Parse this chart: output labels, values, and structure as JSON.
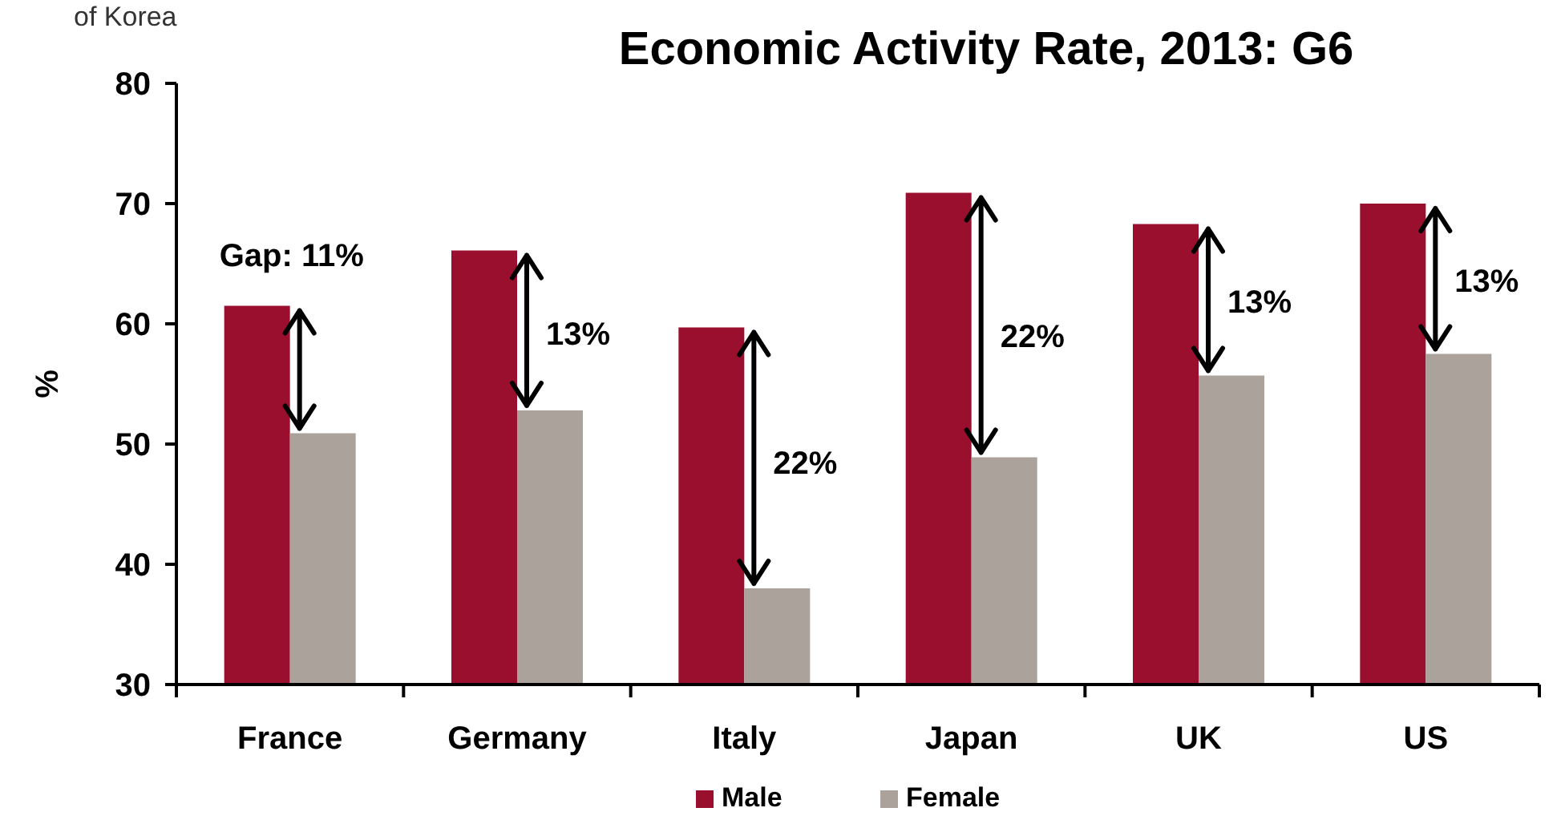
{
  "chart_data": {
    "type": "bar",
    "title": "Economic Activity Rate, 2013: G6",
    "ylabel": "%",
    "categories": [
      "France",
      "Germany",
      "Italy",
      "Japan",
      "UK",
      "US"
    ],
    "series": [
      {
        "name": "Male",
        "color": "#9b0f2e",
        "values": [
          61.5,
          66.1,
          59.7,
          70.9,
          68.3,
          70.0
        ]
      },
      {
        "name": "Female",
        "color": "#aaa29b",
        "values": [
          50.9,
          52.8,
          38.0,
          48.9,
          55.7,
          57.5
        ]
      }
    ],
    "ylim": [
      30,
      80
    ],
    "yticks": [
      30,
      40,
      50,
      60,
      70,
      80
    ],
    "grid": false,
    "legend": "bottom",
    "annotations": [
      "of Korea",
      {
        "text": "Gap: 11%",
        "x": "France",
        "y": 61.5
      },
      {
        "text": "13%",
        "x": "Germany",
        "y": 59.2
      },
      {
        "text": "22%",
        "x": "Italy",
        "y": 48.5
      },
      {
        "text": "22%",
        "x": "Japan",
        "y": 59
      },
      {
        "text": "13%",
        "x": "UK",
        "y": 61.9
      },
      {
        "text": "13%",
        "x": "US",
        "y": 63.6
      }
    ]
  }
}
